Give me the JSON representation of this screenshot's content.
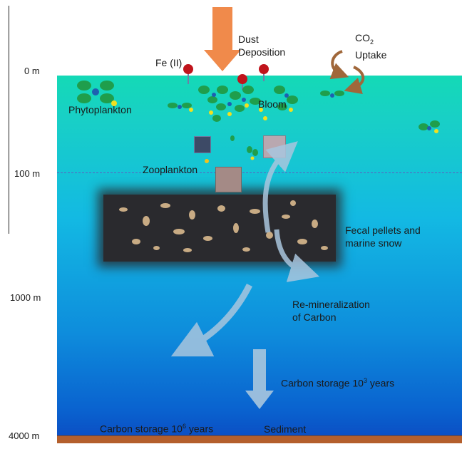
{
  "depths": {
    "d0": "0 m",
    "d100": "100 m",
    "d1000": "1000 m",
    "d4000": "4000 m"
  },
  "labels": {
    "fe": "Fe (II)",
    "dust": [
      "Dust",
      "Deposition"
    ],
    "co2_main": "CO",
    "co2_sub": "2",
    "uptake": "Uptake",
    "phytoplankton": "Phytoplankton",
    "bloom": "Bloom",
    "zooplankton": "Zooplankton",
    "fecal": [
      "Fecal pellets  and",
      "marine snow"
    ],
    "remin": [
      "Re-mineralization",
      "of Carbon"
    ],
    "storage1_pre": "Carbon storage  10",
    "storage1_sup": "3",
    "storage1_post": " years",
    "storage2_pre": "Carbon storage 10",
    "storage2_sup": "6",
    "storage2_post": " years",
    "sediment": "Sediment"
  },
  "colors": {
    "surface": "#14d9b6",
    "deep": "#0b4fc4",
    "sediment": "#b45f2c",
    "dust_arrow": "#f08a4b",
    "iron": "#c0141c",
    "co2_arrow": "#a0673a",
    "phyto": "#1f9e4c",
    "pale_arrow": "#a9c6de"
  }
}
